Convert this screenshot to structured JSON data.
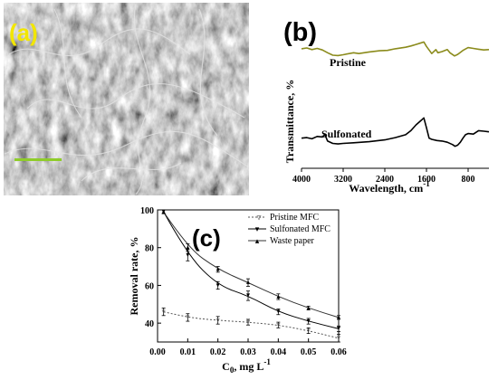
{
  "colors": {
    "pristine_ftir": "#8b8b1c",
    "sulfonated_ftir": "#000000",
    "sem_label": "#f2e600",
    "scale_bar": "#8fcc2a",
    "sem_background": "#5a5a5a",
    "waste_line": "#333333"
  },
  "panels": {
    "a": {
      "label": "(a)",
      "type": "sem-micrograph"
    },
    "b": {
      "label": "(b)",
      "ylabel": "Transmittance, %",
      "xlabel_main": "Wavelength, cm",
      "xlabel_exp": "-1",
      "series_labels": [
        "Pristine",
        "Sulfonated"
      ],
      "xticks": [
        "4000",
        "3200",
        "2400",
        "1600",
        "800"
      ]
    },
    "c": {
      "label": "(c)",
      "ylabel": "Removal rate, %",
      "xlabel_main": "C",
      "xlabel_sub": "0",
      "xlabel_units": ", mg L",
      "xlabel_exp": "-1",
      "legend": [
        "Pristine MFC",
        "Sulfonated MFC",
        "Waste paper"
      ]
    }
  },
  "chart_data": [
    {
      "type": "line",
      "panel": "b",
      "xlabel": "Wavelength, cm-1",
      "ylabel": "Transmittance, %",
      "xlim": [
        4000,
        400
      ],
      "xticks": [
        4000,
        3200,
        2400,
        1600,
        800
      ],
      "yticks_shown": false,
      "series": [
        {
          "name": "Pristine",
          "x": [
            4000,
            3900,
            3800,
            3700,
            3600,
            3500,
            3400,
            3300,
            3200,
            3000,
            2900,
            2700,
            2500,
            2350,
            2200,
            2000,
            1900,
            1800,
            1700,
            1650,
            1600,
            1500,
            1420,
            1380,
            1300,
            1200,
            1150,
            1060,
            1000,
            900,
            800,
            700,
            600,
            500,
            400
          ],
          "y": [
            82,
            84,
            80,
            83,
            79,
            72,
            66,
            65,
            67,
            72,
            70,
            74,
            77,
            78,
            82,
            86,
            89,
            93,
            97,
            99,
            88,
            70,
            80,
            72,
            75,
            80,
            72,
            64,
            68,
            78,
            85,
            83,
            81,
            79,
            80
          ]
        },
        {
          "name": "Sulfonated",
          "x": [
            4000,
            3900,
            3800,
            3700,
            3600,
            3550,
            3500,
            3400,
            3300,
            3200,
            3000,
            2700,
            2400,
            2200,
            2000,
            1900,
            1800,
            1700,
            1650,
            1600,
            1550,
            1500,
            1400,
            1300,
            1200,
            1100,
            1050,
            1000,
            950,
            900,
            850,
            800,
            700,
            600,
            500,
            400
          ],
          "y": [
            27,
            28,
            26,
            30,
            29,
            33,
            22,
            18,
            17,
            18,
            19,
            21,
            24,
            28,
            33,
            40,
            50,
            58,
            62,
            45,
            27,
            25,
            23,
            22,
            20,
            16,
            13,
            15,
            20,
            27,
            33,
            35,
            34,
            40,
            39,
            38
          ]
        }
      ]
    },
    {
      "type": "line",
      "panel": "c",
      "xlabel": "C0, mg L-1",
      "ylabel": "Removal rate, %",
      "xlim": [
        0,
        0.06
      ],
      "ylim": [
        30,
        100
      ],
      "xticks": [
        0.0,
        0.01,
        0.02,
        0.03,
        0.04,
        0.05,
        0.06
      ],
      "yticks": [
        40,
        60,
        80,
        100
      ],
      "legend_position": "top-right",
      "series": [
        {
          "name": "Pristine MFC",
          "x": [
            0.002,
            0.01,
            0.02,
            0.03,
            0.04,
            0.05,
            0.06
          ],
          "y": [
            46,
            43,
            41.5,
            40.5,
            39,
            36,
            32
          ],
          "err": [
            2,
            2,
            2,
            1.5,
            1.5,
            1.5,
            2
          ]
        },
        {
          "name": "Sulfonated MFC",
          "x": [
            0.002,
            0.01,
            0.02,
            0.03,
            0.04,
            0.05,
            0.06
          ],
          "y": [
            99,
            76,
            60,
            54.5,
            46,
            41,
            37
          ],
          "err": [
            1,
            3,
            2,
            2.5,
            1.5,
            1.5,
            1.5
          ]
        },
        {
          "name": "Waste paper",
          "x": [
            0.002,
            0.01,
            0.02,
            0.03,
            0.04,
            0.05,
            0.06
          ],
          "y": [
            99,
            80,
            68.5,
            61.5,
            54,
            48,
            43
          ],
          "err": [
            1,
            2,
            1.5,
            2,
            1.5,
            1,
            1
          ]
        }
      ]
    }
  ]
}
